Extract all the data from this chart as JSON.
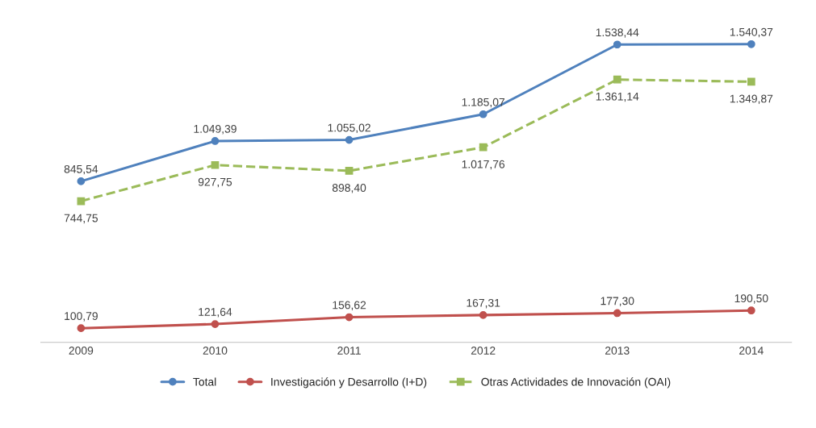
{
  "chart_data": {
    "type": "line",
    "categories": [
      "2009",
      "2010",
      "2011",
      "2012",
      "2013",
      "2014"
    ],
    "data_labels": true,
    "legend": "bottom",
    "grid": false,
    "tick_labels": "x",
    "series": [
      {
        "name": "Total",
        "color": "#4f81bd",
        "marker": "circle",
        "line_style": "solid",
        "values": [
          845.54,
          1049.39,
          1055.02,
          1185.07,
          1538.44,
          1540.37
        ],
        "value_labels": [
          "845,54",
          "1.049,39",
          "1.055,02",
          "1.185,07",
          "1.538,44",
          "1.540,37"
        ]
      },
      {
        "name": "Investigación y Desarrollo (I+D)",
        "color": "#c0504d",
        "marker": "circle",
        "line_style": "solid",
        "values": [
          100.79,
          121.64,
          156.62,
          167.31,
          177.3,
          190.5
        ],
        "value_labels": [
          "100,79",
          "121,64",
          "156,62",
          "167,31",
          "177,30",
          "190,50"
        ]
      },
      {
        "name": "Otras Actividades de Innovación (OAI)",
        "color": "#9bbb59",
        "marker": "square",
        "line_style": "dashed",
        "values": [
          744.75,
          927.75,
          898.4,
          1017.76,
          1361.14,
          1349.87
        ],
        "value_labels": [
          "744,75",
          "927,75",
          "898,40",
          "1.017,76",
          "1.361,14",
          "1.349,87"
        ]
      }
    ]
  }
}
